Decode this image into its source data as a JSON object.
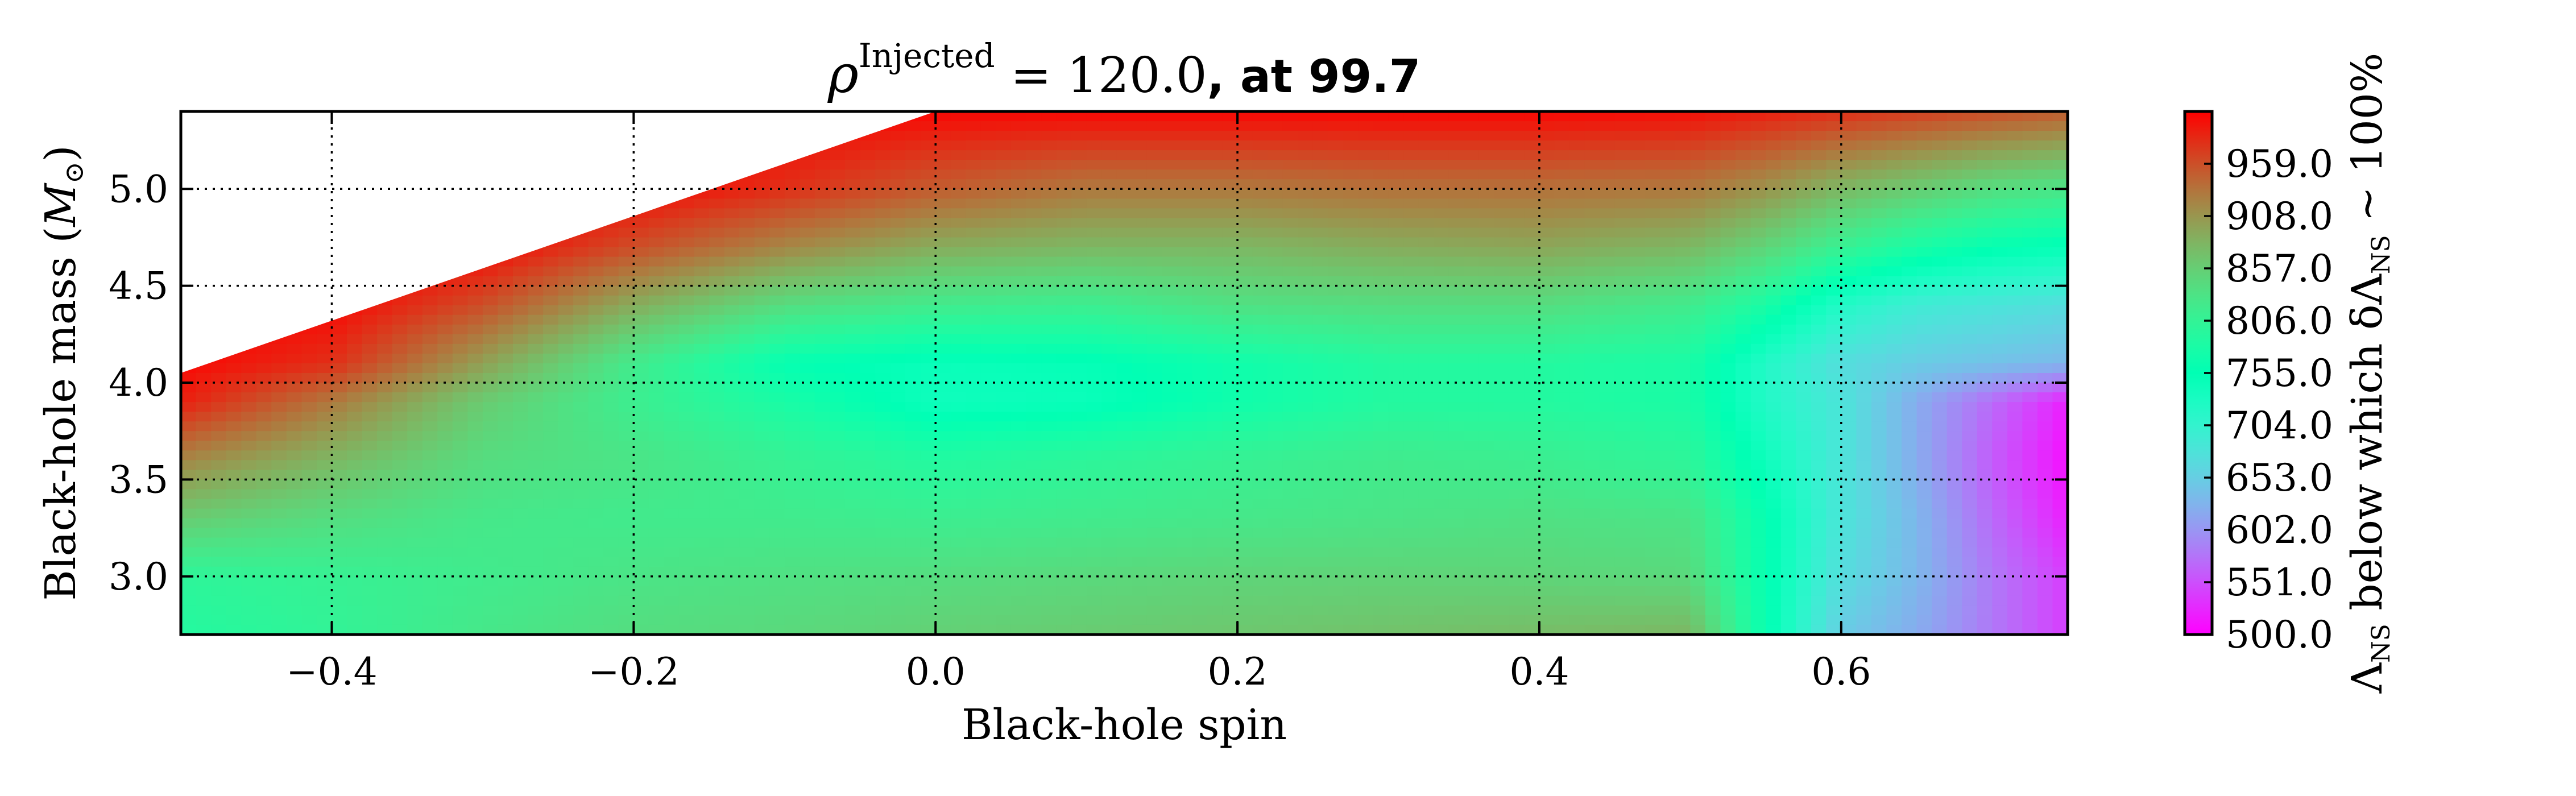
{
  "chart_data": {
    "type": "heatmap",
    "title": {
      "rho": "ρ",
      "superscript": "Injected",
      "equals_value": " = 120.0",
      "rest": ", at 99.7"
    },
    "xlabel": "Black-hole spin",
    "ylabel": {
      "text": "Black-hole mass (",
      "unit_symbol": "M",
      "unit_subscript": "⊙",
      "close": ")"
    },
    "xlim": [
      -0.5,
      0.75
    ],
    "ylim": [
      2.7,
      5.4
    ],
    "x_ticks": [
      -0.4,
      -0.2,
      0.0,
      0.2,
      0.4,
      0.6
    ],
    "x_tick_labels": [
      "−0.4",
      "−0.2",
      "0.0",
      "0.2",
      "0.4",
      "0.6"
    ],
    "y_ticks": [
      3.0,
      3.5,
      4.0,
      4.5,
      5.0
    ],
    "y_tick_labels": [
      "3.0",
      "3.5",
      "4.0",
      "4.5",
      "5.0"
    ],
    "grid": true,
    "grid_style": "dotted",
    "colormap": "rainbow",
    "colorbar": {
      "label": {
        "lambda1": "Λ",
        "sub1": "NS",
        "middle": " below which δ",
        "lambda2": "Λ",
        "sub2": "NS",
        "end": " ~ 100%"
      },
      "range": [
        500.0,
        1010.0
      ],
      "ticks": [
        500.0,
        551.0,
        602.0,
        653.0,
        704.0,
        755.0,
        806.0,
        857.0,
        908.0,
        959.0
      ],
      "tick_labels": [
        "500.0",
        "551.0",
        "602.0",
        "653.0",
        "704.0",
        "755.0",
        "806.0",
        "857.0",
        "908.0",
        "959.0"
      ]
    },
    "valid_region_upper_boundary": [
      [
        -0.5,
        4.05
      ],
      [
        0.0,
        5.4
      ]
    ],
    "grid_x": [
      -0.5,
      -0.4,
      -0.3,
      -0.2,
      -0.1,
      0.0,
      0.1,
      0.2,
      0.3,
      0.4,
      0.5,
      0.55,
      0.6,
      0.65,
      0.7,
      0.75
    ],
    "grid_y": [
      2.7,
      3.0,
      3.3,
      3.6,
      3.9,
      4.1,
      4.4,
      4.7,
      5.0,
      5.4
    ],
    "z": [
      [
        790,
        805,
        825,
        840,
        845,
        855,
        860,
        865,
        870,
        875,
        880,
        760,
        650,
        620,
        580,
        540
      ],
      [
        800,
        810,
        820,
        830,
        835,
        840,
        845,
        850,
        852,
        850,
        845,
        760,
        670,
        630,
        580,
        540
      ],
      [
        860,
        840,
        825,
        820,
        820,
        815,
        820,
        825,
        830,
        835,
        830,
        760,
        680,
        630,
        570,
        520
      ],
      [
        920,
        880,
        840,
        830,
        810,
        790,
        800,
        810,
        820,
        815,
        800,
        740,
        680,
        620,
        560,
        510
      ],
      [
        990,
        930,
        860,
        815,
        780,
        740,
        745,
        770,
        790,
        790,
        780,
        720,
        680,
        620,
        570,
        520
      ],
      [
        1005,
        980,
        900,
        820,
        760,
        745,
        750,
        770,
        790,
        790,
        780,
        720,
        670,
        650,
        640,
        630
      ],
      [
        1010,
        1005,
        960,
        890,
        840,
        820,
        815,
        835,
        840,
        840,
        820,
        780,
        720,
        690,
        680,
        670
      ],
      [
        1010,
        1010,
        1005,
        960,
        920,
        890,
        880,
        880,
        890,
        895,
        880,
        850,
        810,
        780,
        760,
        750
      ],
      [
        1010,
        1010,
        1010,
        1005,
        980,
        950,
        930,
        930,
        935,
        935,
        930,
        910,
        880,
        860,
        840,
        830
      ],
      [
        1010,
        1010,
        1010,
        1010,
        1010,
        1005,
        1005,
        1005,
        1005,
        1005,
        1000,
        990,
        980,
        970,
        960,
        950
      ]
    ]
  }
}
